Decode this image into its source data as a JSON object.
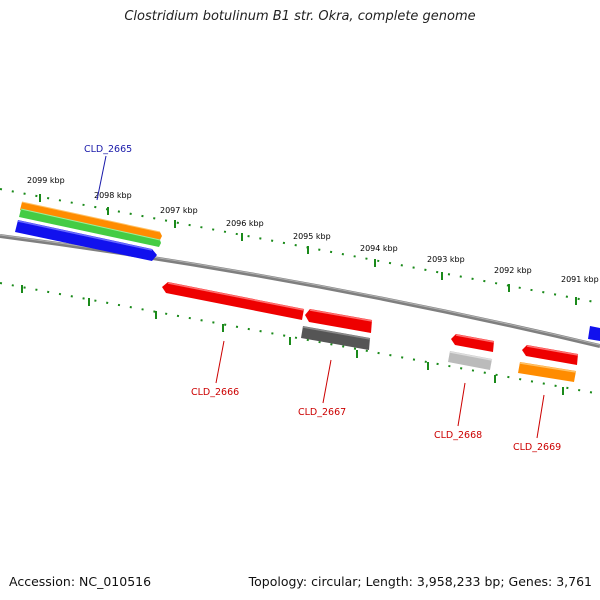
{
  "header": {
    "title": "Clostridium botulinum B1 str. Okra, complete genome"
  },
  "footer": {
    "accession": "Accession: NC_010516",
    "topology": "Topology: circular; Length: 3,958,233 bp; Genes: 3,761"
  },
  "ruler": {
    "ticks": [
      "2099 kbp",
      "2098 kbp",
      "2097 kbp",
      "2096 kbp",
      "2095 kbp",
      "2094 kbp",
      "2093 kbp",
      "2092 kbp",
      "2091 kbp"
    ]
  },
  "gene_labels": [
    {
      "text": "CLD_2665",
      "color": "#1a1aaa"
    },
    {
      "text": "CLD_2666",
      "color": "#cc0000"
    },
    {
      "text": "CLD_2667",
      "color": "#cc0000"
    },
    {
      "text": "CLD_2668",
      "color": "#cc0000"
    },
    {
      "text": "CLD_2669",
      "color": "#cc0000"
    }
  ],
  "colors": {
    "backbone": "#7f7f7f",
    "dots": "#1a8a1a",
    "forward_blue": "#1111ee",
    "orange": "#ff8c00",
    "green": "#44cc44",
    "red": "#ee0000",
    "dark_gray": "#555555",
    "light_gray": "#bbbbbb"
  }
}
